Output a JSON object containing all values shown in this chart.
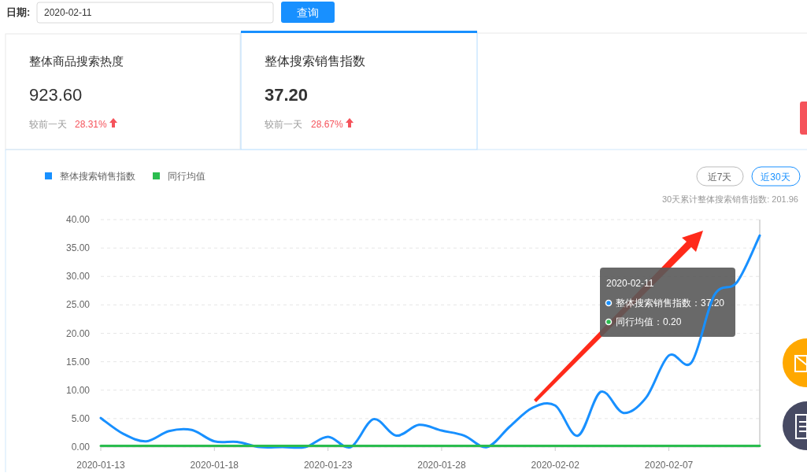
{
  "chart_data": {
    "type": "line",
    "x": [
      "2020-01-13",
      "2020-01-14",
      "2020-01-15",
      "2020-01-16",
      "2020-01-17",
      "2020-01-18",
      "2020-01-19",
      "2020-01-20",
      "2020-01-21",
      "2020-01-22",
      "2020-01-23",
      "2020-01-24",
      "2020-01-25",
      "2020-01-26",
      "2020-01-27",
      "2020-01-28",
      "2020-01-29",
      "2020-01-30",
      "2020-01-31",
      "2020-02-01",
      "2020-02-02",
      "2020-02-03",
      "2020-02-04",
      "2020-02-05",
      "2020-02-06",
      "2020-02-07",
      "2020-02-08",
      "2020-02-09",
      "2020-02-10",
      "2020-02-11"
    ],
    "xlim": [
      "2020-01-13",
      "2020-02-11"
    ],
    "xticks": [
      "2020-01-13",
      "2020-01-18",
      "2020-01-23",
      "2020-01-28",
      "2020-02-02",
      "2020-02-07"
    ],
    "ylim": [
      0,
      40
    ],
    "yticks": [
      {
        "value": 0,
        "label": "0.00"
      },
      {
        "value": 5,
        "label": "5.00"
      },
      {
        "value": 10,
        "label": "10.00"
      },
      {
        "value": 15,
        "label": "15.00"
      },
      {
        "value": 20,
        "label": "20.00"
      },
      {
        "value": 25,
        "label": "25.00"
      },
      {
        "value": 30,
        "label": "30.00"
      },
      {
        "value": 35,
        "label": "35.00"
      },
      {
        "value": 40,
        "label": "40.00"
      }
    ],
    "series": [
      {
        "name": "整体搜索销售指数",
        "color": "#1890ff",
        "values": [
          5.1,
          2.3,
          1.0,
          2.8,
          3.0,
          1.0,
          0.9,
          0,
          0,
          0,
          1.8,
          0,
          4.9,
          2.0,
          3.9,
          2.9,
          2.0,
          0,
          3.6,
          6.9,
          7.3,
          2.0,
          9.7,
          6.0,
          8.7,
          16.1,
          14.9,
          26.7,
          29.0,
          37.2
        ]
      },
      {
        "name": "同行均值",
        "color": "#2bbd4f",
        "values": [
          0.2,
          0.2,
          0.2,
          0.2,
          0.2,
          0.2,
          0.2,
          0.2,
          0.2,
          0.2,
          0.2,
          0.2,
          0.2,
          0.2,
          0.2,
          0.2,
          0.2,
          0.2,
          0.2,
          0.2,
          0.2,
          0.2,
          0.2,
          0.2,
          0.2,
          0.2,
          0.2,
          0.2,
          0.2,
          0.2
        ]
      }
    ],
    "grid": "y",
    "legend": "top left",
    "ref_lines": [
      {
        "axis": "x",
        "value": "2020-02-11",
        "color": "#d9d9d9"
      }
    ],
    "annotations": [
      "日期:",
      "2020-02-11",
      "查询",
      "整体商品搜索热度",
      "923.60",
      "较前一天",
      "28.31%",
      "整体搜索销售指数",
      "37.20",
      "较前一天",
      "28.67%",
      "近7天",
      "近30天",
      "30天累计整体搜索销售指数: 201.96",
      "2020-02-11",
      "整体搜索销售指数：37.20",
      "同行均值：0.20"
    ]
  }
}
